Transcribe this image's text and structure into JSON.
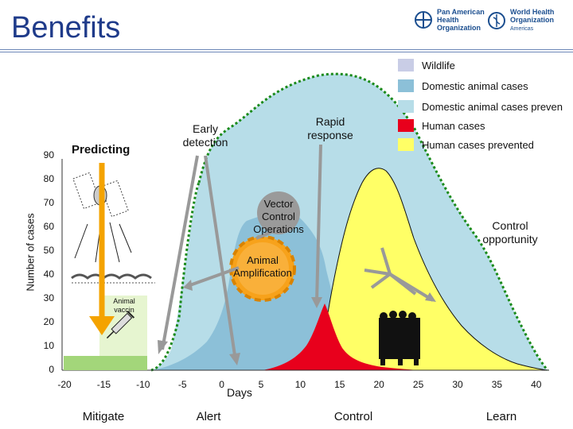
{
  "header": {
    "title": "Benefits",
    "paho_logo": "Pan American\nHealth\nOrganization",
    "who_logo": "World Health\nOrganization",
    "who_sub": "Americas"
  },
  "legend": [
    {
      "label": "Wildlife",
      "color": "#c9cde6"
    },
    {
      "label": "Domestic animal cases",
      "color": "#8cc0d8"
    },
    {
      "label": "Domestic animal cases preven",
      "color": "#b7dde8"
    },
    {
      "label": "Human cases",
      "color": "#e8001c"
    },
    {
      "label": "Human cases prevented",
      "color": "#ffff66"
    }
  ],
  "axes": {
    "ylabel": "Number of cases",
    "xlabel": "Days",
    "yticks": [
      "0",
      "10",
      "20",
      "30",
      "40",
      "50",
      "60",
      "70",
      "80",
      "90"
    ],
    "xticks": [
      "-20",
      "-15",
      "-10",
      "-5",
      "0",
      "5",
      "10",
      "15",
      "20",
      "25",
      "30",
      "35",
      "40"
    ]
  },
  "phases": [
    "Mitigate",
    "Alert",
    "Control",
    "Learn"
  ],
  "annotations": {
    "predicting": "Predicting",
    "early_detection": "Early detection",
    "rapid_response": "Rapid response",
    "vector_control": "Vector Control Operations",
    "animal_amplification": "Animal Amplification",
    "control_opportunity": "Control opportunity",
    "animal_vaccine": "Animal vaccin"
  },
  "icons": [
    "satellite-icon",
    "mosquito-icon",
    "syringe-icon",
    "people-group-icon",
    "grass-icon"
  ]
}
